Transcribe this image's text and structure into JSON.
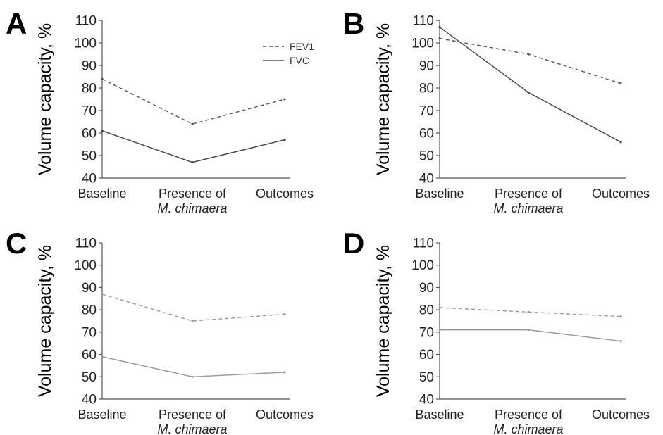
{
  "chart_data": [
    {
      "type": "line",
      "panel": "A",
      "ylabel": "Volume capacity, %",
      "ylim": [
        40,
        110
      ],
      "yticks": [
        40,
        50,
        60,
        70,
        80,
        90,
        100,
        110
      ],
      "categories": [
        [
          "Baseline"
        ],
        [
          "Presence of",
          "M. chimaera"
        ],
        [
          "Outcomes"
        ]
      ],
      "legend": {
        "placement": "top-right",
        "entries": [
          {
            "label": "FEV1",
            "style": "dashed"
          },
          {
            "label": "FVC",
            "style": "solid"
          }
        ]
      },
      "series": [
        {
          "name": "FEV1",
          "values": [
            84,
            64,
            75
          ],
          "style": "dashed",
          "color": "#555555"
        },
        {
          "name": "FVC",
          "values": [
            61,
            47,
            57
          ],
          "style": "solid",
          "color": "#444444"
        }
      ]
    },
    {
      "type": "line",
      "panel": "B",
      "ylabel": "Volume capacity, %",
      "ylim": [
        40,
        110
      ],
      "yticks": [
        40,
        50,
        60,
        70,
        80,
        90,
        100,
        110
      ],
      "categories": [
        [
          "Baseline"
        ],
        [
          "Presence of",
          "M. chimaera"
        ],
        [
          "Outcomes"
        ]
      ],
      "series": [
        {
          "name": "FEV1",
          "values": [
            102,
            95,
            82
          ],
          "style": "dashed",
          "color": "#555555"
        },
        {
          "name": "FVC",
          "values": [
            107,
            78,
            56
          ],
          "style": "solid",
          "color": "#444444"
        }
      ]
    },
    {
      "type": "line",
      "panel": "C",
      "ylabel": "Volume capacity, %",
      "ylim": [
        40,
        110
      ],
      "yticks": [
        40,
        50,
        60,
        70,
        80,
        90,
        100,
        110
      ],
      "categories": [
        [
          "Baseline"
        ],
        [
          "Presence of",
          "M. chimaera"
        ],
        [
          "Outcomes"
        ]
      ],
      "series": [
        {
          "name": "FEV1",
          "values": [
            87,
            75,
            78
          ],
          "style": "dashed",
          "color": "#999999"
        },
        {
          "name": "FVC",
          "values": [
            59,
            50,
            52
          ],
          "style": "solid",
          "color": "#999999"
        }
      ]
    },
    {
      "type": "line",
      "panel": "D",
      "ylabel": "Volume capacity, %",
      "ylim": [
        40,
        110
      ],
      "yticks": [
        40,
        50,
        60,
        70,
        80,
        90,
        100,
        110
      ],
      "categories": [
        [
          "Baseline"
        ],
        [
          "Presence of",
          "M. chimaera"
        ],
        [
          "Outcomes"
        ]
      ],
      "series": [
        {
          "name": "FEV1",
          "values": [
            81,
            79,
            77
          ],
          "style": "dashed",
          "color": "#999999"
        },
        {
          "name": "FVC",
          "values": [
            71,
            71,
            66
          ],
          "style": "solid",
          "color": "#999999"
        }
      ]
    }
  ]
}
